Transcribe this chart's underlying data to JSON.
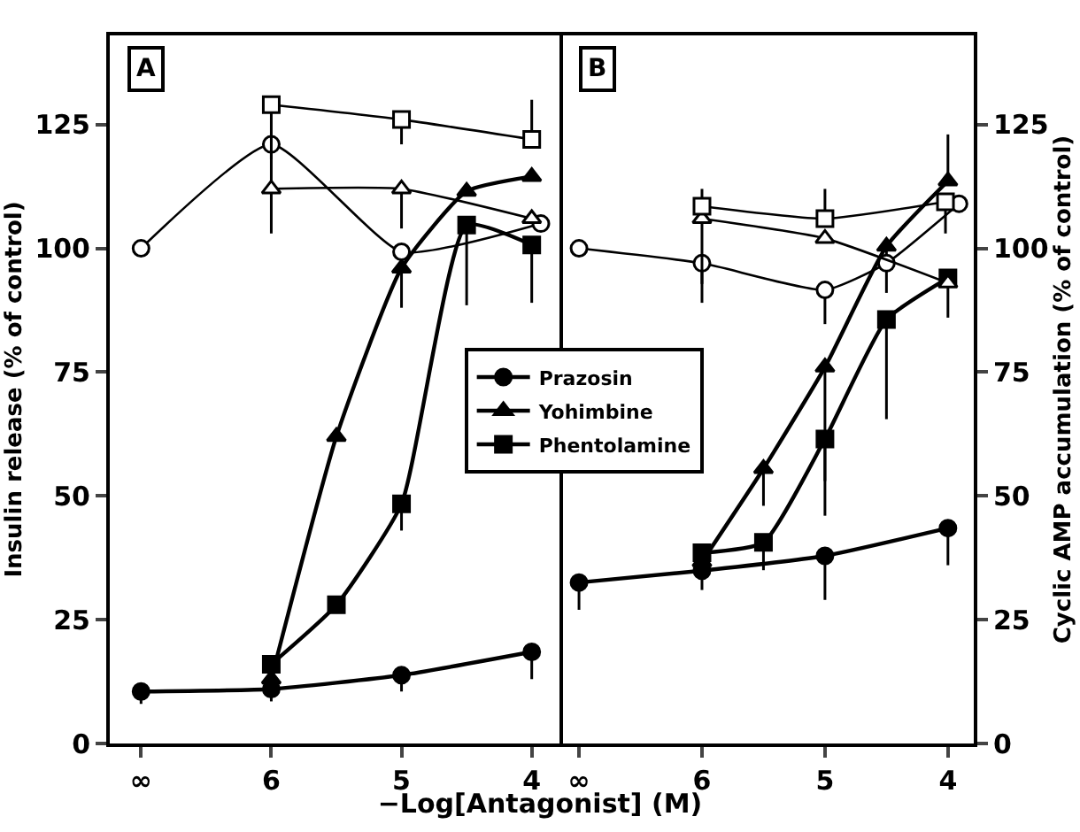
{
  "chart_data": [
    {
      "type": "line",
      "xlabel": "−Log[Antagonist] (M)",
      "ylabel": "Insulin release (% of control)",
      "annotations": [
        "A"
      ],
      "xlim": [
        7.24,
        3.76
      ],
      "xticks": [
        {
          "value": 7,
          "label": "∞"
        },
        6,
        5,
        4
      ],
      "ylim": [
        0,
        143
      ],
      "yticks": [
        0,
        25,
        50,
        75,
        100,
        125
      ],
      "grid": false,
      "series": [
        {
          "color": "#000000",
          "marker": "circle",
          "x": [
            7,
            6,
            5,
            4
          ],
          "values": [
            10.5,
            11,
            13.8,
            18.5
          ],
          "errors": [
            [
              8,
              10.5
            ],
            [
              8.5,
              11
            ],
            [
              10.5,
              13.8
            ],
            [
              13,
              18.5
            ]
          ]
        },
        {
          "color": "#000000",
          "marker": "triangle",
          "x": [
            6,
            5.5,
            5,
            4.5,
            4
          ],
          "values": [
            13,
            62,
            96,
            111.5,
            114.5
          ],
          "errors": [
            null,
            null,
            [
              88,
              96
            ],
            null,
            null
          ]
        },
        {
          "color": "#000000",
          "marker": "square",
          "x": [
            6,
            5.5,
            5,
            4.5,
            4
          ],
          "values": [
            16,
            28,
            48.4,
            104.7,
            100.7
          ],
          "errors": [
            null,
            null,
            [
              43,
              48.4
            ],
            [
              88.5,
              104.7
            ],
            [
              89,
              100.7
            ]
          ]
        },
        {
          "color": "#ffffff",
          "marker": "circle",
          "x": [
            7,
            6,
            5,
            3.93
          ],
          "values": [
            100,
            121,
            99.3,
            105
          ],
          "errors": [
            null,
            [
              112,
              121
            ],
            null,
            null
          ]
        },
        {
          "color": "#ffffff",
          "marker": "triangle",
          "x": [
            6,
            5,
            4
          ],
          "values": [
            112,
            112,
            106
          ],
          "errors": [
            [
              103,
              112
            ],
            [
              104,
              112
            ],
            null
          ]
        },
        {
          "color": "#ffffff",
          "marker": "square",
          "x": [
            6,
            5,
            4
          ],
          "values": [
            129,
            126,
            122
          ],
          "errors": [
            [
              118,
              129
            ],
            [
              121,
              126
            ],
            [
              122,
              130
            ]
          ]
        }
      ]
    },
    {
      "type": "line",
      "ylabel": "Cyclic AMP accumulation (% of control)",
      "annotations": [
        "B"
      ],
      "xlim": [
        7.13,
        3.79
      ],
      "xticks": [
        {
          "value": 7,
          "label": "∞"
        },
        6,
        5,
        4
      ],
      "ylim": [
        0,
        143
      ],
      "yticks": [
        0,
        25,
        50,
        75,
        100,
        125
      ],
      "grid": false,
      "legend": "left",
      "series": [
        {
          "name": "Prazosin",
          "color": "#000000",
          "marker": "circle",
          "x": [
            7,
            6,
            5,
            4
          ],
          "values": [
            32.5,
            34.9,
            37.9,
            43.5
          ],
          "errors": [
            [
              27,
              32.5
            ],
            [
              31,
              34.9
            ],
            [
              29,
              37.9
            ],
            [
              36,
              43.5
            ]
          ]
        },
        {
          "name": "Yohimbine",
          "color": "#000000",
          "marker": "triangle",
          "x": [
            6,
            5.5,
            5,
            4.5,
            4
          ],
          "values": [
            36.7,
            55.5,
            76,
            100.4,
            113.6
          ],
          "errors": [
            null,
            [
              48,
              55.5
            ],
            [
              53,
              76
            ],
            [
              91,
              100.4
            ],
            [
              113.6,
              123
            ]
          ]
        },
        {
          "name": "Phentolamine",
          "color": "#000000",
          "marker": "square",
          "x": [
            6,
            5.5,
            5,
            4.5,
            4
          ],
          "values": [
            38.5,
            40.6,
            61.5,
            85.6,
            94
          ],
          "errors": [
            null,
            [
              35,
              40.6
            ],
            [
              46,
              61.5
            ],
            [
              65.5,
              85.6
            ],
            [
              86,
              94
            ]
          ]
        },
        {
          "color": "#ffffff",
          "marker": "circle",
          "x": [
            7,
            6,
            5,
            4.5,
            3.91
          ],
          "values": [
            100,
            97,
            91.6,
            97,
            109
          ],
          "errors": [
            null,
            [
              89,
              97
            ],
            [
              84.7,
              91.6
            ],
            null,
            null
          ]
        },
        {
          "color": "#ffffff",
          "marker": "triangle",
          "x": [
            6,
            5,
            4
          ],
          "values": [
            106,
            102,
            93
          ],
          "errors": [
            [
              92.8,
              106
            ],
            null,
            null
          ]
        },
        {
          "color": "#ffffff",
          "marker": "square",
          "x": [
            6,
            5,
            4.02
          ],
          "values": [
            108.5,
            106,
            109.4
          ],
          "errors": [
            [
              108.5,
              112
            ],
            [
              106,
              112
            ],
            [
              103,
              109.4
            ]
          ]
        }
      ]
    }
  ]
}
